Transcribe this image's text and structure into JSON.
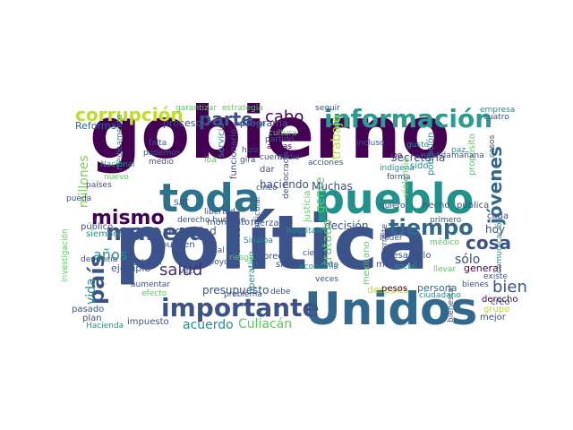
{
  "wordcloud": {
    "palette": [
      "#440154",
      "#3b528b",
      "#21918c",
      "#5ec962",
      "#bddf26"
    ],
    "words": [
      {
        "text": "gobierno",
        "color": "#440154"
      },
      {
        "text": "política",
        "color": "#3b528b"
      },
      {
        "text": "Unidos",
        "color": "#31688e"
      },
      {
        "text": "pueblo",
        "color": "#21918c"
      },
      {
        "text": "toda",
        "color": "#2c728e"
      },
      {
        "text": "importante",
        "color": "#3b528b"
      },
      {
        "text": "información",
        "color": "#2a9d8f"
      },
      {
        "text": "manera",
        "color": "#3b528b"
      },
      {
        "text": "mismo",
        "color": "#440154"
      },
      {
        "text": "país",
        "color": "#3b528b"
      },
      {
        "text": "tiempo",
        "color": "#31688e"
      },
      {
        "text": "corrupción",
        "color": "#bddf26"
      },
      {
        "text": "parte",
        "color": "#3b528b"
      },
      {
        "text": "cabo",
        "color": "#440154"
      },
      {
        "text": "salud",
        "color": "#472d7b"
      },
      {
        "text": "jóvenes",
        "color": "#31688e"
      },
      {
        "text": "bien",
        "color": "#3b528b"
      },
      {
        "text": "cosa",
        "color": "#3b528b"
      },
      {
        "text": "años",
        "color": "#21918c"
      },
      {
        "text": "vida",
        "color": "#21918c"
      },
      {
        "text": "millones",
        "color": "#7ad151"
      },
      {
        "text": "gente",
        "color": "#5ec962"
      },
      {
        "text": "Culiacán",
        "color": "#5ec962"
      },
      {
        "text": "acuerdo",
        "color": "#21918c"
      },
      {
        "text": "Secretaría",
        "color": "#3b528b"
      },
      {
        "text": "seguridad",
        "color": "#3b528b"
      },
      {
        "text": "haciendo",
        "color": "#3b528b"
      },
      {
        "text": "decisión",
        "color": "#3b528b"
      },
      {
        "text": "Muchas",
        "color": "#3b528b"
      },
      {
        "text": "presupuesto",
        "color": "#3b528b"
      },
      {
        "text": "hoy",
        "color": "#3b528b"
      },
      {
        "text": "sólo",
        "color": "#3b528b"
      },
      {
        "text": "proceso",
        "color": "#3b528b"
      },
      {
        "text": "Reforma",
        "color": "#31688e"
      },
      {
        "text": "programa",
        "color": "#3b528b"
      },
      {
        "text": "ejemplo",
        "color": "#3b528b"
      },
      {
        "text": "después",
        "color": "#bddf26"
      },
      {
        "text": "persona",
        "color": "#31688e"
      },
      {
        "text": "asunto",
        "color": "#3b528b"
      },
      {
        "text": "tratado",
        "color": "#5ec962"
      },
      {
        "text": "trabajo",
        "color": "#bddf26"
      },
      {
        "text": "general",
        "color": "#440154"
      },
      {
        "text": "ley",
        "color": "#3b528b"
      },
      {
        "text": "siempre",
        "color": "#21918c"
      },
      {
        "text": "impuesto",
        "color": "#3b528b"
      },
      {
        "text": "pasado",
        "color": "#3b528b"
      },
      {
        "text": "plan",
        "color": "#3b528b"
      },
      {
        "text": "mejor",
        "color": "#3b528b"
      },
      {
        "text": "creo",
        "color": "#3b528b"
      },
      {
        "text": "grupo",
        "color": "#bddf26"
      },
      {
        "text": "derecho",
        "color": "#440154"
      },
      {
        "text": "pesos",
        "color": "#440154"
      },
      {
        "text": "menos",
        "color": "#3b528b"
      },
      {
        "text": "desarrollo",
        "color": "#3b528b"
      },
      {
        "text": "cada",
        "color": "#3b528b"
      },
      {
        "text": "pública",
        "color": "#3b528b"
      },
      {
        "text": "hecho",
        "color": "#3b528b"
      },
      {
        "text": "momento",
        "color": "#3b528b"
      },
      {
        "text": "fuerza",
        "color": "#3b528b"
      },
      {
        "text": "sino",
        "color": "#3b528b"
      },
      {
        "text": "precio",
        "color": "#3b528b"
      },
      {
        "text": "operativo",
        "color": "#21918c"
      },
      {
        "text": "pueden",
        "color": "#3b528b"
      },
      {
        "text": "público",
        "color": "#3b528b"
      },
      {
        "text": "funcionario",
        "color": "#3b528b"
      },
      {
        "text": "servicio",
        "color": "#21918c"
      },
      {
        "text": "violencia",
        "color": "#5ec962"
      },
      {
        "text": "justicia",
        "color": "#5ec962"
      },
      {
        "text": "dar",
        "color": "#3b528b"
      },
      {
        "text": "mexicano",
        "color": "#5ec962"
      },
      {
        "text": "población",
        "color": "#21918c"
      },
      {
        "text": "propósito",
        "color": "#5ec962"
      },
      {
        "text": "sido",
        "color": "#21918c"
      },
      {
        "text": "empresa",
        "color": "#21918c"
      },
      {
        "text": "casos",
        "color": "#3b528b"
      },
      {
        "text": "gusto",
        "color": "#21918c"
      },
      {
        "text": "tipo",
        "color": "#440154"
      },
      {
        "text": "incluso",
        "color": "#3b528b"
      },
      {
        "text": "cuenta",
        "color": "#3b528b"
      },
      {
        "text": "partido",
        "color": "#3b528b"
      },
      {
        "text": "armas",
        "color": "#440154"
      },
      {
        "text": "falta",
        "color": "#3b528b"
      },
      {
        "text": "podemos",
        "color": "#3b528b"
      },
      {
        "text": "medio",
        "color": "#3b528b"
      },
      {
        "text": "Nacional",
        "color": "#21918c"
      },
      {
        "text": "medicamento",
        "color": "#21918c"
      },
      {
        "text": "garantizar",
        "color": "#5ec962"
      },
      {
        "text": "estrategia",
        "color": "#5ec962"
      },
      {
        "text": "cultura",
        "color": "#5ec962"
      },
      {
        "text": "seguir",
        "color": "#3b528b"
      },
      {
        "text": "cuatro",
        "color": "#3b528b"
      },
      {
        "text": "mañana",
        "color": "#3b528b"
      },
      {
        "text": "paz",
        "color": "#21918c"
      },
      {
        "text": "medida",
        "color": "#3b528b"
      },
      {
        "text": "forma",
        "color": "#3b528b"
      },
      {
        "text": "acciones",
        "color": "#3b528b"
      },
      {
        "text": "indígena",
        "color": "#21918c"
      },
      {
        "text": "quiero",
        "color": "#3b528b"
      },
      {
        "text": "primero",
        "color": "#3b528b"
      },
      {
        "text": "médico",
        "color": "#5ec962"
      },
      {
        "text": "Poder",
        "color": "#3b528b"
      },
      {
        "text": "permite",
        "color": "#3b528b"
      },
      {
        "text": "bienes",
        "color": "#3b528b"
      },
      {
        "text": "existe",
        "color": "#3b528b"
      },
      {
        "text": "comunicación",
        "color": "#21918c"
      },
      {
        "text": "punto",
        "color": "#3b528b"
      },
      {
        "text": "veces",
        "color": "#3b528b"
      },
      {
        "text": "llevar",
        "color": "#5ec962"
      },
      {
        "text": "ciudadano",
        "color": "#21918c"
      },
      {
        "text": "social",
        "color": "#21918c"
      },
      {
        "text": "cierto",
        "color": "#3b528b"
      },
      {
        "text": "economía",
        "color": "#21918c"
      },
      {
        "text": "hospitales",
        "color": "#21918c"
      },
      {
        "text": "democracia",
        "color": "#3b528b"
      },
      {
        "text": "cinco",
        "color": "#3b528b"
      },
      {
        "text": "libertad",
        "color": "#3b528b"
      },
      {
        "text": "derecho humano",
        "color": "#3b528b"
      },
      {
        "text": "problema",
        "color": "#3b528b"
      },
      {
        "text": "debe",
        "color": "#3b528b"
      },
      {
        "text": "apoyo",
        "color": "#3b528b"
      },
      {
        "text": "vez",
        "color": "#3b528b"
      },
      {
        "text": "mal",
        "color": "#3b528b"
      },
      {
        "text": "riesgo",
        "color": "#5ec962"
      },
      {
        "text": "Sinaloa",
        "color": "#21918c"
      },
      {
        "text": "particular",
        "color": "#3b528b"
      },
      {
        "text": "aumentar",
        "color": "#3b528b"
      },
      {
        "text": "saber",
        "color": "#3b528b"
      },
      {
        "text": "segunda",
        "color": "#3b528b"
      },
      {
        "text": "efecto",
        "color": "#5ec962"
      },
      {
        "text": "investigación",
        "color": "#5ec962"
      },
      {
        "text": "denuncia",
        "color": "#3b528b"
      },
      {
        "text": "Hacienda",
        "color": "#21918c"
      },
      {
        "text": "países",
        "color": "#3b528b"
      },
      {
        "text": "nuevo",
        "color": "#5ec962"
      },
      {
        "text": "pueda",
        "color": "#3b528b"
      },
      {
        "text": "SAT",
        "color": "#3b528b"
      },
      {
        "text": "informe",
        "color": "#3b528b"
      },
      {
        "text": "hizo",
        "color": "#3b528b"
      },
      {
        "text": "gira",
        "color": "#3b528b"
      },
      {
        "text": "nadie",
        "color": "#3b528b"
      },
      {
        "text": "iba",
        "color": "#5ec962"
      },
      {
        "text": "bienestar",
        "color": "#3b528b"
      }
    ]
  }
}
